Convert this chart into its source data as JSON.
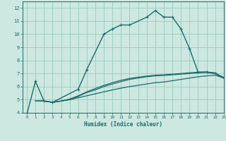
{
  "xlabel": "Humidex (Indice chaleur)",
  "bg_color": "#cce8e0",
  "grid_color": "#99ccbb",
  "line_color": "#1a6b6b",
  "xlim": [
    -0.5,
    23
  ],
  "ylim": [
    4,
    12.5
  ],
  "xticks": [
    0,
    1,
    2,
    3,
    4,
    5,
    6,
    7,
    8,
    9,
    10,
    11,
    12,
    13,
    14,
    15,
    16,
    17,
    18,
    19,
    20,
    21,
    22,
    23
  ],
  "yticks": [
    4,
    5,
    6,
    7,
    8,
    9,
    10,
    11,
    12
  ],
  "series": [
    {
      "x": [
        0,
        1,
        2,
        3,
        6,
        7,
        9,
        10,
        11,
        12,
        14,
        15,
        16,
        17,
        18,
        19,
        20,
        21,
        22,
        23
      ],
      "y": [
        3.9,
        6.4,
        4.9,
        4.8,
        5.8,
        7.3,
        10.0,
        10.4,
        10.7,
        10.7,
        11.3,
        11.8,
        11.3,
        11.3,
        10.4,
        8.9,
        7.1,
        7.1,
        7.0,
        6.7
      ],
      "marker": true
    },
    {
      "x": [
        1,
        2,
        3,
        4,
        5,
        6,
        7,
        8,
        9,
        10,
        11,
        12,
        13,
        14,
        15,
        16,
        17,
        18,
        19,
        20,
        21,
        22,
        23
      ],
      "y": [
        4.9,
        4.9,
        4.8,
        4.9,
        5.0,
        5.15,
        5.3,
        5.45,
        5.6,
        5.75,
        5.88,
        6.0,
        6.1,
        6.2,
        6.3,
        6.35,
        6.45,
        6.55,
        6.65,
        6.75,
        6.82,
        6.87,
        6.65
      ],
      "marker": false
    },
    {
      "x": [
        1,
        2,
        3,
        4,
        5,
        6,
        7,
        8,
        9,
        10,
        11,
        12,
        13,
        14,
        15,
        16,
        17,
        18,
        19,
        20,
        21,
        22,
        23
      ],
      "y": [
        4.9,
        4.9,
        4.8,
        4.9,
        5.0,
        5.25,
        5.55,
        5.75,
        6.0,
        6.2,
        6.38,
        6.55,
        6.65,
        6.75,
        6.82,
        6.85,
        6.9,
        6.95,
        7.0,
        7.05,
        7.08,
        7.0,
        6.65
      ],
      "marker": false
    },
    {
      "x": [
        1,
        2,
        3,
        4,
        5,
        6,
        7,
        8,
        9,
        10,
        11,
        12,
        13,
        14,
        15,
        16,
        17,
        18,
        19,
        20,
        21,
        22,
        23
      ],
      "y": [
        4.9,
        4.9,
        4.8,
        4.9,
        5.05,
        5.3,
        5.6,
        5.85,
        6.1,
        6.3,
        6.48,
        6.62,
        6.72,
        6.8,
        6.87,
        6.9,
        6.95,
        7.0,
        7.05,
        7.1,
        7.12,
        7.05,
        6.65
      ],
      "marker": false
    }
  ]
}
